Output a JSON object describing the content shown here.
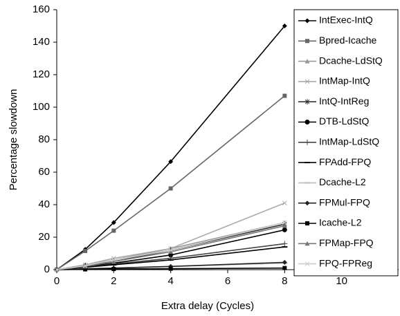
{
  "chart_data": {
    "type": "line",
    "x_label": "Extra delay (Cycles)",
    "y_label": "Percentage slowdown",
    "x": [
      0,
      1,
      2,
      4,
      8
    ],
    "xlim": [
      0,
      12
    ],
    "xticks": [
      0,
      2,
      4,
      6,
      8,
      10
    ],
    "ylim": [
      0,
      160
    ],
    "yticks": [
      0,
      20,
      40,
      60,
      80,
      100,
      120,
      140,
      160
    ],
    "grid": false,
    "legend": "right",
    "series": [
      {
        "name": "IntExec-IntQ",
        "color": "#000000",
        "marker": "diamond",
        "values": [
          0,
          12.5,
          29,
          66.5,
          150
        ]
      },
      {
        "name": "Bpred-Icache",
        "color": "#666666",
        "marker": "square",
        "values": [
          0,
          11.5,
          24,
          50,
          107
        ]
      },
      {
        "name": "Dcache-LdStQ",
        "color": "#999999",
        "marker": "triangle",
        "values": [
          0,
          3,
          6,
          13,
          29
        ]
      },
      {
        "name": "IntMap-IntQ",
        "color": "#aaaaaa",
        "marker": "x",
        "values": [
          0,
          3,
          7,
          13,
          41
        ]
      },
      {
        "name": "IntQ-IntReg",
        "color": "#333333",
        "marker": "asterisk",
        "values": [
          0,
          2.5,
          5,
          12,
          28
        ]
      },
      {
        "name": "DTB-LdStQ",
        "color": "#000000",
        "marker": "circle",
        "values": [
          0,
          2,
          4,
          9,
          24.5
        ]
      },
      {
        "name": "IntMap-LdStQ",
        "color": "#444444",
        "marker": "plus",
        "values": [
          0,
          1.5,
          3.5,
          7,
          16
        ]
      },
      {
        "name": "FPAdd-FPQ",
        "color": "#000000",
        "marker": "dash",
        "values": [
          0,
          1.5,
          3,
          6,
          14
        ]
      },
      {
        "name": "Dcache-L2",
        "color": "#bbbbbb",
        "marker": "dash",
        "values": [
          0,
          0.5,
          1,
          2,
          4
        ]
      },
      {
        "name": "FPMul-FPQ",
        "color": "#222222",
        "marker": "diamond",
        "values": [
          0,
          0.5,
          1,
          2,
          4.5
        ]
      },
      {
        "name": "Icache-L2",
        "color": "#000000",
        "marker": "square",
        "values": [
          0,
          0.2,
          0.4,
          0.6,
          1
        ]
      },
      {
        "name": "FPMap-FPQ",
        "color": "#777777",
        "marker": "triangle",
        "values": [
          0,
          2,
          5,
          11,
          27
        ]
      },
      {
        "name": "FPQ-FPReg",
        "color": "#cccccc",
        "marker": "x",
        "values": [
          0,
          2.5,
          6,
          12,
          29
        ]
      }
    ]
  }
}
